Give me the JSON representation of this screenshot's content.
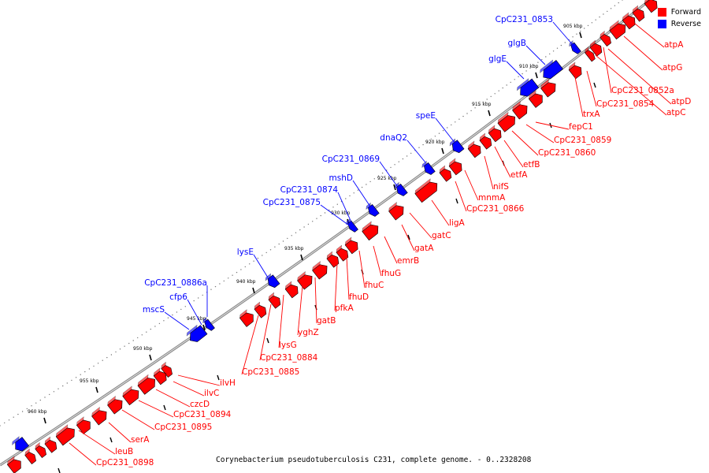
{
  "caption": "Corynebacterium pseudotuberculosis C231, complete genome. - 0..2328208",
  "legend": {
    "forward_label": "Forward",
    "forward_color": "#ff0000",
    "reverse_label": "Reverse",
    "reverse_color": "#0000ff"
  },
  "ticks": [
    "905 kbp",
    "910 kbp",
    "915 kbp",
    "920 kbp",
    "925 kbp",
    "930 kbp",
    "935 kbp",
    "940 kbp",
    "945 kbp",
    "950 kbp",
    "955 kbp",
    "960 kbp"
  ],
  "reverse_labels": [
    "CpC231_0853",
    "glgB",
    "glgE",
    "speE",
    "dnaQ2",
    "CpC231_0869",
    "mshD",
    "CpC231_0874",
    "CpC231_0875",
    "lysE",
    "CpC231_0886a",
    "cfp6",
    "mscS"
  ],
  "forward_labels": [
    "atpA",
    "atpG",
    "CpC231_0852a",
    "atpD",
    "atpC",
    "CpC231_0854",
    "trxA",
    "fepC1",
    "CpC231_0859",
    "CpC231_0860",
    "etfB",
    "etfA",
    "nifS",
    "mnmA",
    "CpC231_0866",
    "ligA",
    "gatC",
    "gatA",
    "emrB",
    "fhuG",
    "fhuC",
    "fhuD",
    "pfkA",
    "gatB",
    "yghZ",
    "lysG",
    "CpC231_0884",
    "CpC231_0885",
    "ilvH",
    "ilvC",
    "czcD",
    "CpC231_0894",
    "CpC231_0895",
    "serA",
    "leuB",
    "CpC231_0898"
  ]
}
